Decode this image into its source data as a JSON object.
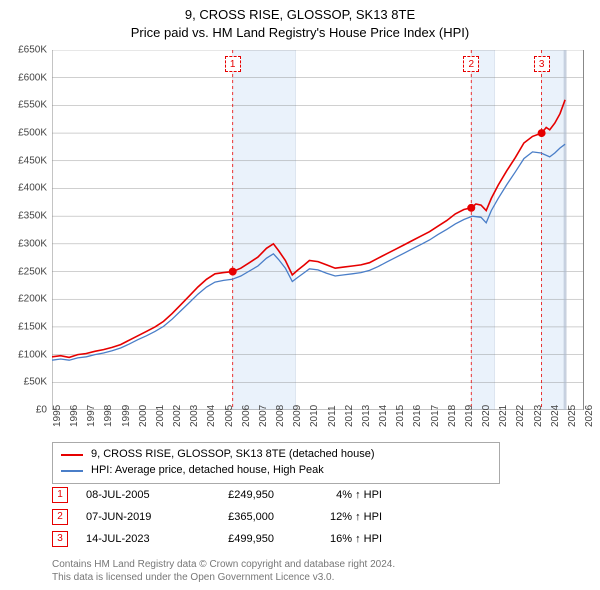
{
  "title_line1": "9, CROSS RISE, GLOSSOP, SK13 8TE",
  "title_line2": "Price paid vs. HM Land Registry's House Price Index (HPI)",
  "chart": {
    "type": "line",
    "x_start_year": 1995,
    "x_end_year": 2026,
    "x_tick_years": [
      1995,
      1996,
      1997,
      1998,
      1999,
      2000,
      2001,
      2002,
      2003,
      2004,
      2005,
      2006,
      2007,
      2008,
      2009,
      2010,
      2011,
      2012,
      2013,
      2014,
      2015,
      2016,
      2017,
      2018,
      2019,
      2020,
      2021,
      2022,
      2023,
      2024,
      2025,
      2026
    ],
    "y_min": 0,
    "y_max": 650000,
    "y_tick_step": 50000,
    "y_tick_labels": [
      "£0",
      "£50K",
      "£100K",
      "£150K",
      "£200K",
      "£250K",
      "£300K",
      "£350K",
      "£400K",
      "£450K",
      "£500K",
      "£550K",
      "£600K",
      "£650K"
    ],
    "background_color": "#ffffff",
    "grid_color": "#888888",
    "band_fill": "#eaf2fb",
    "band_border": "#d0d8e4",
    "series": [
      {
        "name": "9, CROSS RISE, GLOSSOP, SK13 8TE (detached house)",
        "color": "#e60000",
        "width": 1.6,
        "points": [
          [
            1995.0,
            96000
          ],
          [
            1995.5,
            98000
          ],
          [
            1996.0,
            95000
          ],
          [
            1996.5,
            100000
          ],
          [
            1997.0,
            102000
          ],
          [
            1997.5,
            106000
          ],
          [
            1998.0,
            109000
          ],
          [
            1998.5,
            113000
          ],
          [
            1999.0,
            118000
          ],
          [
            1999.5,
            126000
          ],
          [
            2000.0,
            134000
          ],
          [
            2000.5,
            142000
          ],
          [
            2001.0,
            150000
          ],
          [
            2001.5,
            160000
          ],
          [
            2002.0,
            174000
          ],
          [
            2002.5,
            190000
          ],
          [
            2003.0,
            206000
          ],
          [
            2003.5,
            222000
          ],
          [
            2004.0,
            236000
          ],
          [
            2004.5,
            246000
          ],
          [
            2005.0,
            248000
          ],
          [
            2005.53,
            249950
          ],
          [
            2006.0,
            256000
          ],
          [
            2006.5,
            266000
          ],
          [
            2007.0,
            276000
          ],
          [
            2007.5,
            292000
          ],
          [
            2007.9,
            300000
          ],
          [
            2008.2,
            288000
          ],
          [
            2008.6,
            270000
          ],
          [
            2009.0,
            244000
          ],
          [
            2009.3,
            252000
          ],
          [
            2009.7,
            262000
          ],
          [
            2010.0,
            270000
          ],
          [
            2010.5,
            268000
          ],
          [
            2011.0,
            262000
          ],
          [
            2011.5,
            256000
          ],
          [
            2012.0,
            258000
          ],
          [
            2012.5,
            260000
          ],
          [
            2013.0,
            262000
          ],
          [
            2013.5,
            266000
          ],
          [
            2014.0,
            274000
          ],
          [
            2014.5,
            282000
          ],
          [
            2015.0,
            290000
          ],
          [
            2015.5,
            298000
          ],
          [
            2016.0,
            306000
          ],
          [
            2016.5,
            314000
          ],
          [
            2017.0,
            322000
          ],
          [
            2017.5,
            332000
          ],
          [
            2018.0,
            342000
          ],
          [
            2018.5,
            354000
          ],
          [
            2019.0,
            362000
          ],
          [
            2019.43,
            365000
          ],
          [
            2019.7,
            372000
          ],
          [
            2020.0,
            370000
          ],
          [
            2020.3,
            360000
          ],
          [
            2020.6,
            382000
          ],
          [
            2021.0,
            406000
          ],
          [
            2021.5,
            432000
          ],
          [
            2022.0,
            456000
          ],
          [
            2022.5,
            482000
          ],
          [
            2023.0,
            494000
          ],
          [
            2023.53,
            499950
          ],
          [
            2023.8,
            510000
          ],
          [
            2024.0,
            506000
          ],
          [
            2024.3,
            518000
          ],
          [
            2024.6,
            535000
          ],
          [
            2024.9,
            560000
          ]
        ]
      },
      {
        "name": "HPI: Average price, detached house, High Peak",
        "color": "#4a7ec8",
        "width": 1.3,
        "points": [
          [
            1995.0,
            90000
          ],
          [
            1995.5,
            92000
          ],
          [
            1996.0,
            90000
          ],
          [
            1996.5,
            94000
          ],
          [
            1997.0,
            96000
          ],
          [
            1997.5,
            100000
          ],
          [
            1998.0,
            103000
          ],
          [
            1998.5,
            107000
          ],
          [
            1999.0,
            112000
          ],
          [
            1999.5,
            119000
          ],
          [
            2000.0,
            127000
          ],
          [
            2000.5,
            134000
          ],
          [
            2001.0,
            142000
          ],
          [
            2001.5,
            151000
          ],
          [
            2002.0,
            164000
          ],
          [
            2002.5,
            179000
          ],
          [
            2003.0,
            194000
          ],
          [
            2003.5,
            209000
          ],
          [
            2004.0,
            222000
          ],
          [
            2004.5,
            231000
          ],
          [
            2005.0,
            234000
          ],
          [
            2005.5,
            236000
          ],
          [
            2006.0,
            242000
          ],
          [
            2006.5,
            251000
          ],
          [
            2007.0,
            260000
          ],
          [
            2007.5,
            274000
          ],
          [
            2007.9,
            282000
          ],
          [
            2008.2,
            272000
          ],
          [
            2008.6,
            256000
          ],
          [
            2009.0,
            232000
          ],
          [
            2009.3,
            239000
          ],
          [
            2009.7,
            248000
          ],
          [
            2010.0,
            255000
          ],
          [
            2010.5,
            253000
          ],
          [
            2011.0,
            247000
          ],
          [
            2011.5,
            242000
          ],
          [
            2012.0,
            244000
          ],
          [
            2012.5,
            246000
          ],
          [
            2013.0,
            248000
          ],
          [
            2013.5,
            252000
          ],
          [
            2014.0,
            259000
          ],
          [
            2014.5,
            267000
          ],
          [
            2015.0,
            275000
          ],
          [
            2015.5,
            283000
          ],
          [
            2016.0,
            291000
          ],
          [
            2016.5,
            299000
          ],
          [
            2017.0,
            307000
          ],
          [
            2017.5,
            317000
          ],
          [
            2018.0,
            326000
          ],
          [
            2018.5,
            336000
          ],
          [
            2019.0,
            344000
          ],
          [
            2019.5,
            350000
          ],
          [
            2020.0,
            348000
          ],
          [
            2020.3,
            338000
          ],
          [
            2020.6,
            360000
          ],
          [
            2021.0,
            382000
          ],
          [
            2021.5,
            407000
          ],
          [
            2022.0,
            430000
          ],
          [
            2022.5,
            454000
          ],
          [
            2023.0,
            466000
          ],
          [
            2023.5,
            464000
          ],
          [
            2024.0,
            457000
          ],
          [
            2024.3,
            464000
          ],
          [
            2024.6,
            473000
          ],
          [
            2024.9,
            480000
          ]
        ]
      }
    ],
    "sale_markers": [
      {
        "n": "1",
        "x": 2005.53,
        "y": 249950,
        "color": "#e60000"
      },
      {
        "n": "2",
        "x": 2019.43,
        "y": 365000,
        "color": "#e60000"
      },
      {
        "n": "3",
        "x": 2023.53,
        "y": 499950,
        "color": "#e60000"
      }
    ],
    "uncertainty_bands": [
      {
        "from": 2005.53,
        "to": 2009.2
      },
      {
        "from": 2019.43,
        "to": 2020.8
      },
      {
        "from": 2023.53,
        "to": 2024.9
      }
    ],
    "now_line_x": 2024.9,
    "now_line_color": "#b0bed0"
  },
  "legend": {
    "rows": [
      {
        "color": "#e60000",
        "label": "9, CROSS RISE, GLOSSOP, SK13 8TE (detached house)"
      },
      {
        "color": "#4a7ec8",
        "label": "HPI: Average price, detached house, High Peak"
      }
    ]
  },
  "events": [
    {
      "n": "1",
      "date": "08-JUL-2005",
      "price": "£249,950",
      "diff": "4% ↑ HPI",
      "color": "#e60000"
    },
    {
      "n": "2",
      "date": "07-JUN-2019",
      "price": "£365,000",
      "diff": "12% ↑ HPI",
      "color": "#e60000"
    },
    {
      "n": "3",
      "date": "14-JUL-2023",
      "price": "£499,950",
      "diff": "16% ↑ HPI",
      "color": "#e60000"
    }
  ],
  "footer_line1": "Contains HM Land Registry data © Crown copyright and database right 2024.",
  "footer_line2": "This data is licensed under the Open Government Licence v3.0."
}
